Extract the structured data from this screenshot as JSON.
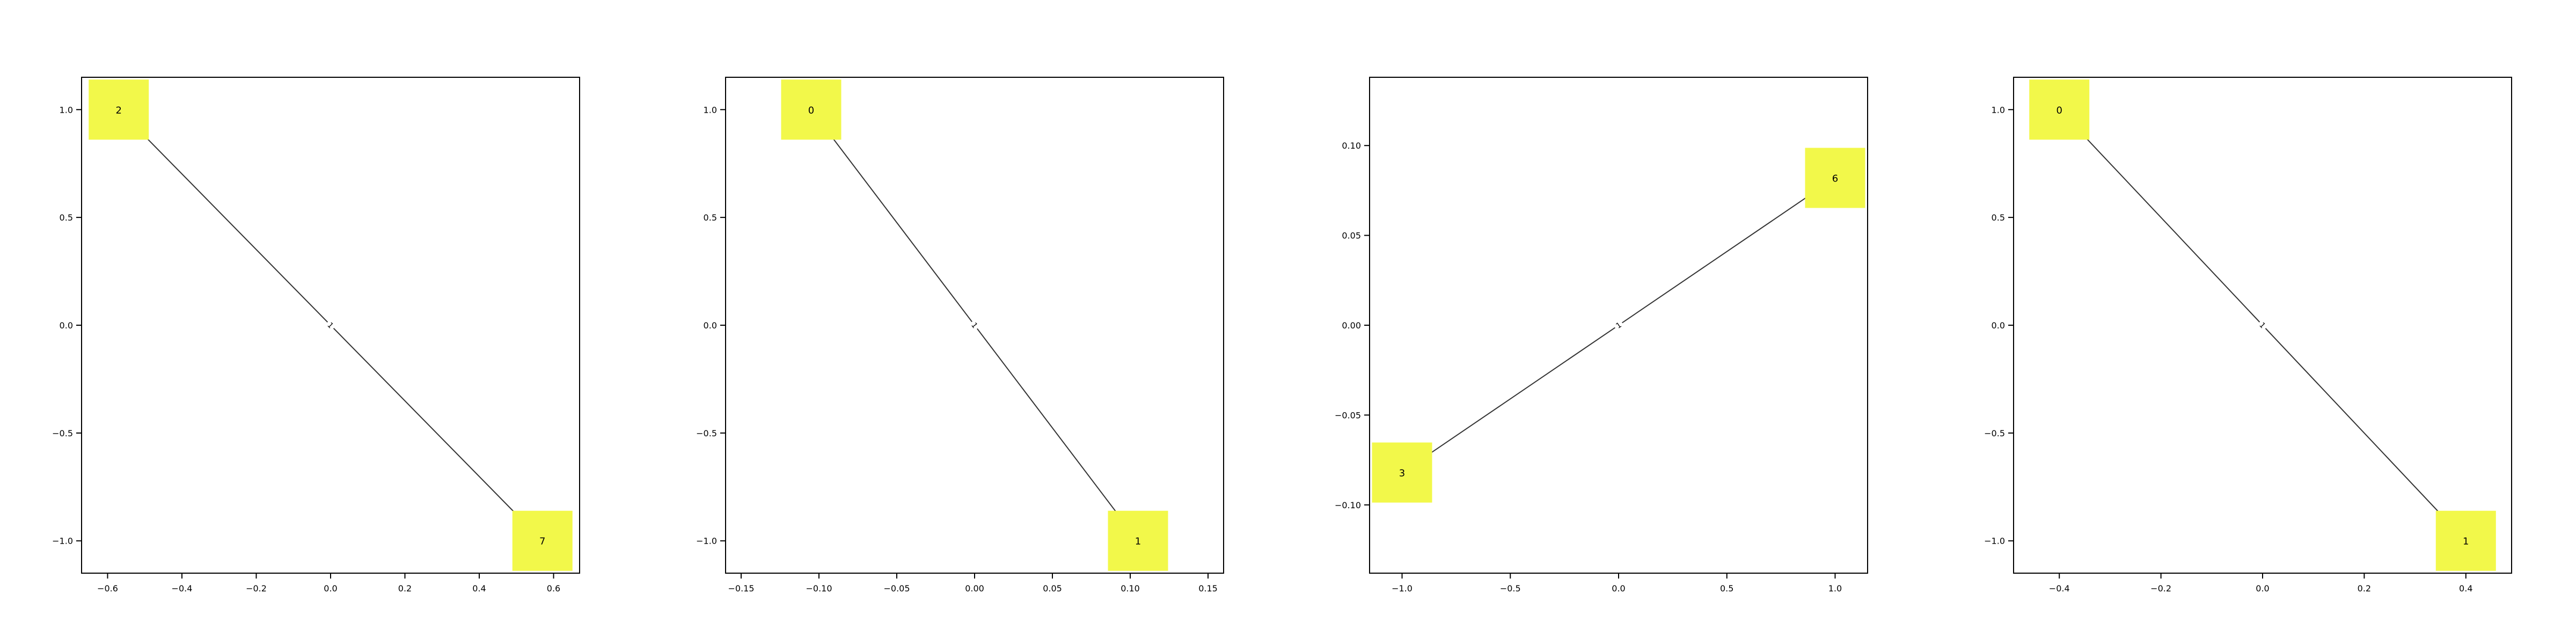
{
  "colors": {
    "node_fill": "#f2f84a",
    "edge": "#333333",
    "axes": "#000000"
  },
  "chart_data": [
    {
      "type": "network",
      "xlim": [
        -0.67,
        0.67
      ],
      "ylim": [
        -1.15,
        1.15
      ],
      "xticks": [
        -0.6,
        -0.4,
        -0.2,
        0.0,
        0.2,
        0.4,
        0.6
      ],
      "xtick_labels": [
        "−0.6",
        "−0.4",
        "−0.2",
        "0.0",
        "0.2",
        "0.4",
        "0.6"
      ],
      "yticks": [
        -1.0,
        -0.5,
        0.0,
        0.5,
        1.0
      ],
      "ytick_labels": [
        "−1.0",
        "−0.5",
        "0.0",
        "0.5",
        "1.0"
      ],
      "nodes": [
        {
          "id": "2",
          "x": -0.57,
          "y": 1.0
        },
        {
          "id": "7",
          "x": 0.57,
          "y": -1.0
        }
      ],
      "edges": [
        {
          "source": 0,
          "target": 1,
          "label": "1"
        }
      ]
    },
    {
      "type": "network",
      "xlim": [
        -0.16,
        0.16
      ],
      "ylim": [
        -1.15,
        1.15
      ],
      "xticks": [
        -0.15,
        -0.1,
        -0.05,
        0.0,
        0.05,
        0.1,
        0.15
      ],
      "xtick_labels": [
        "−0.15",
        "−0.10",
        "−0.05",
        "0.00",
        "0.05",
        "0.10",
        "0.15"
      ],
      "yticks": [
        -1.0,
        -0.5,
        0.0,
        0.5,
        1.0
      ],
      "ytick_labels": [
        "−1.0",
        "−0.5",
        "0.0",
        "0.5",
        "1.0"
      ],
      "nodes": [
        {
          "id": "0",
          "x": -0.105,
          "y": 1.0
        },
        {
          "id": "1",
          "x": 0.105,
          "y": -1.0
        }
      ],
      "edges": [
        {
          "source": 0,
          "target": 1,
          "label": "1"
        }
      ]
    },
    {
      "type": "network",
      "xlim": [
        -1.15,
        1.15
      ],
      "ylim": [
        -0.138,
        0.138
      ],
      "xticks": [
        -1.0,
        -0.5,
        0.0,
        0.5,
        1.0
      ],
      "xtick_labels": [
        "−1.0",
        "−0.5",
        "0.0",
        "0.5",
        "1.0"
      ],
      "yticks": [
        -0.1,
        -0.05,
        0.0,
        0.05,
        0.1
      ],
      "ytick_labels": [
        "−0.10",
        "−0.05",
        "0.00",
        "0.05",
        "0.10"
      ],
      "nodes": [
        {
          "id": "3",
          "x": -1.0,
          "y": -0.082
        },
        {
          "id": "6",
          "x": 1.0,
          "y": 0.082
        }
      ],
      "edges": [
        {
          "source": 0,
          "target": 1,
          "label": "1"
        }
      ]
    },
    {
      "type": "network",
      "xlim": [
        -0.49,
        0.49
      ],
      "ylim": [
        -1.15,
        1.15
      ],
      "xticks": [
        -0.4,
        -0.2,
        0.0,
        0.2,
        0.4
      ],
      "xtick_labels": [
        "−0.4",
        "−0.2",
        "0.0",
        "0.2",
        "0.4"
      ],
      "yticks": [
        -1.0,
        -0.5,
        0.0,
        0.5,
        1.0
      ],
      "ytick_labels": [
        "−1.0",
        "−0.5",
        "0.0",
        "0.5",
        "1.0"
      ],
      "nodes": [
        {
          "id": "0",
          "x": -0.4,
          "y": 1.0
        },
        {
          "id": "1",
          "x": 0.4,
          "y": -1.0
        }
      ],
      "edges": [
        {
          "source": 0,
          "target": 1,
          "label": "1"
        }
      ]
    }
  ]
}
